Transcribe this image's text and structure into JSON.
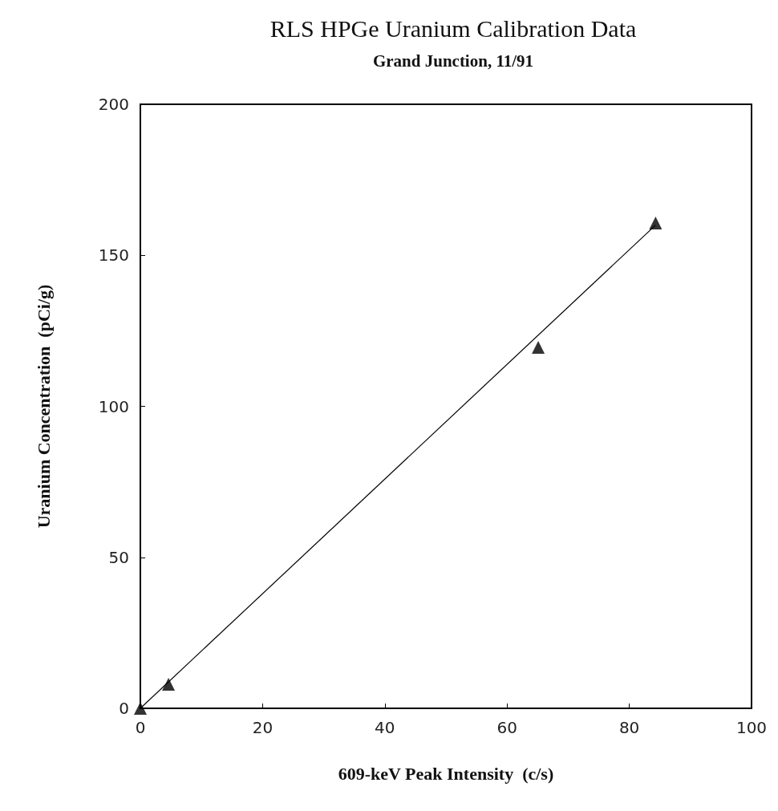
{
  "chart_data": {
    "type": "scatter",
    "title": "RLS HPGe Uranium Calibration Data",
    "subtitle": "Grand Junction, 11/91",
    "xlabel": "609-keV Peak Intensity  (c/s)",
    "ylabel": "Uranium Concentration  (pCi/g)",
    "series": [
      {
        "color": "#000000",
        "marker": "triangle",
        "x": [
          0,
          4.6,
          65.1,
          84.3
        ],
        "values": [
          0,
          8,
          119.5,
          160.7
        ]
      },
      {
        "type": "line",
        "color": "#000000",
        "marker": "none",
        "line_style": "solid",
        "x": [
          0,
          84.3
        ],
        "values": [
          0,
          160
        ]
      }
    ],
    "xlim": [
      0,
      100
    ],
    "xticks": [
      0,
      20,
      40,
      60,
      80,
      100
    ],
    "ylim": [
      0,
      200
    ],
    "yticks": [
      0,
      50,
      100,
      150,
      200
    ],
    "grid": false
  }
}
